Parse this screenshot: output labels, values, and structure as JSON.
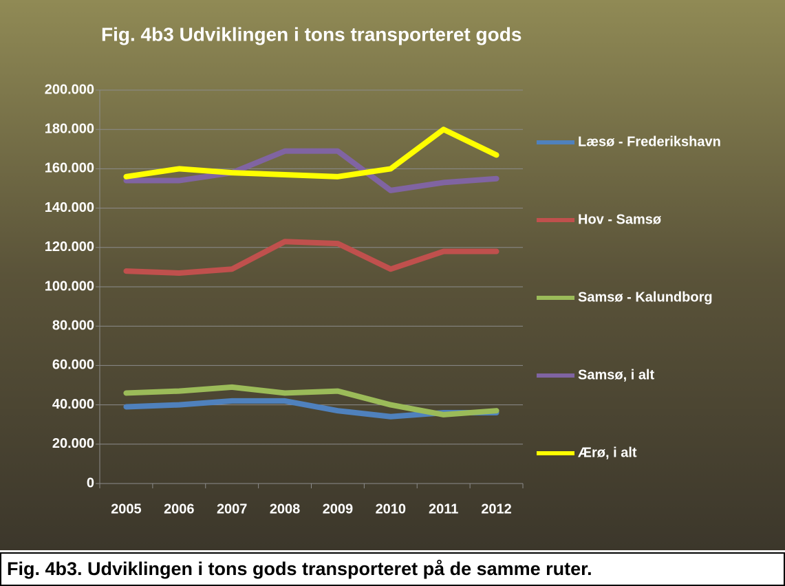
{
  "chart_data": {
    "type": "line",
    "title": "Fig. 4b3 Udviklingen i tons transporteret gods",
    "categories": [
      "2005",
      "2006",
      "2007",
      "2008",
      "2009",
      "2010",
      "2011",
      "2012"
    ],
    "series": [
      {
        "name": "Læsø - Frederikshavn",
        "color": "#4f81bd",
        "values": [
          39000,
          40000,
          42000,
          42000,
          37000,
          34000,
          36000,
          36000
        ]
      },
      {
        "name": "Hov - Samsø",
        "color": "#c0504d",
        "values": [
          108000,
          107000,
          109000,
          123000,
          122000,
          109000,
          118000,
          118000
        ]
      },
      {
        "name": "Samsø - Kalundborg",
        "color": "#9bbb59",
        "values": [
          46000,
          47000,
          49000,
          46000,
          47000,
          40000,
          35000,
          37000
        ]
      },
      {
        "name": "Samsø, i alt",
        "color": "#8064a2",
        "values": [
          154000,
          154000,
          158000,
          169000,
          169000,
          149000,
          153000,
          155000
        ]
      },
      {
        "name": "Ærø, i alt",
        "color": "#ffff00",
        "values": [
          156000,
          160000,
          158000,
          157000,
          156000,
          160000,
          180000,
          167000
        ]
      }
    ],
    "ylim": [
      0,
      200000
    ],
    "yticks": [
      0,
      {
        "value": 20000,
        "label": "20.000"
      },
      {
        "value": 40000,
        "label": "40.000"
      },
      {
        "value": 60000,
        "label": "60.000"
      },
      {
        "value": 80000,
        "label": "80.000"
      },
      {
        "value": 100000,
        "label": "100.000"
      },
      {
        "value": 120000,
        "label": "120.000"
      },
      {
        "value": 140000,
        "label": "140.000"
      },
      {
        "value": 160000,
        "label": "160.000"
      },
      {
        "value": 180000,
        "label": "180.000"
      },
      {
        "value": 200000,
        "label": "200.000"
      }
    ],
    "grid": true,
    "legend": "right"
  },
  "caption": "Fig. 4b3. Udviklingen i tons gods transporteret på de samme ruter."
}
